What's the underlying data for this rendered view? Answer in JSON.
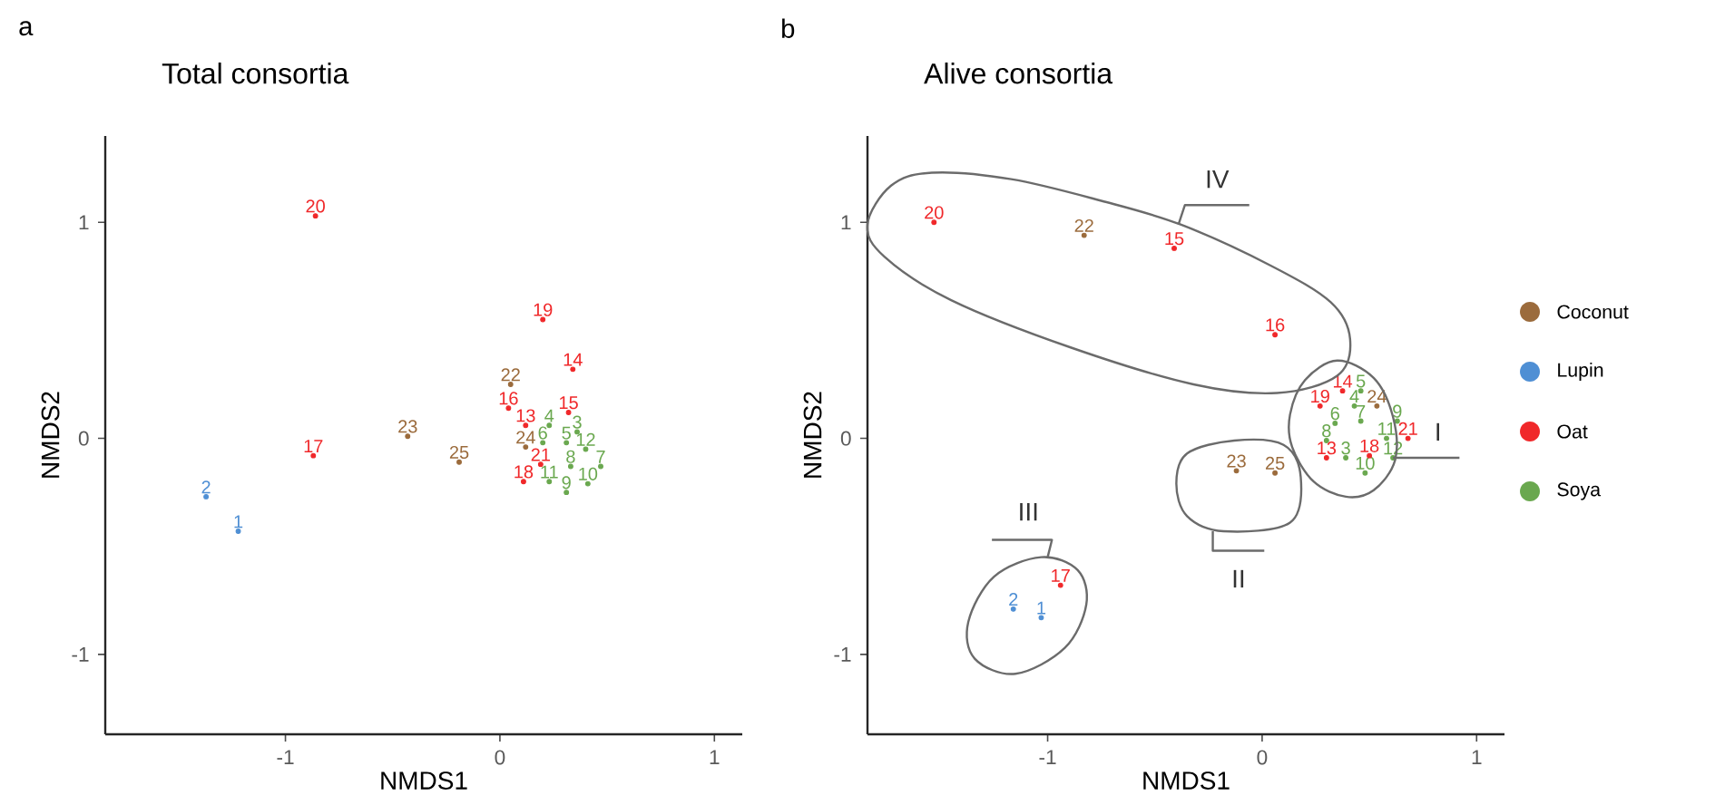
{
  "chart_data": [
    {
      "type": "scatter",
      "title": "Total consortia",
      "xlabel": "NMDS1",
      "ylabel": "NMDS2",
      "marker": "circle",
      "xlim": [
        -1.84,
        1.13
      ],
      "ylim": [
        -1.37,
        1.4
      ],
      "xticks": [
        -1,
        0,
        1
      ],
      "yticks": [
        -1,
        0,
        1
      ],
      "series": [
        {
          "color": "#9b6b3c",
          "x": [
            0.05,
            -0.43,
            -0.19,
            0.12
          ],
          "values": [
            0.25,
            0.01,
            -0.11,
            -0.04
          ]
        },
        {
          "color": "#4f8fd4",
          "x": [
            -1.37,
            -1.22
          ],
          "values": [
            -0.27,
            -0.43
          ]
        },
        {
          "color": "#f0282a",
          "x": [
            -0.86,
            0.2,
            0.34,
            -0.87,
            0.04,
            0.12,
            0.32,
            0.19,
            0.11
          ],
          "values": [
            1.03,
            0.55,
            0.32,
            -0.08,
            0.14,
            0.06,
            0.12,
            -0.12,
            -0.2
          ]
        },
        {
          "color": "#6aa84f",
          "x": [
            0.23,
            0.36,
            0.2,
            0.31,
            0.4,
            0.33,
            0.47,
            0.23,
            0.31,
            0.41
          ],
          "values": [
            0.06,
            0.03,
            -0.02,
            -0.02,
            -0.05,
            -0.13,
            -0.13,
            -0.2,
            -0.25,
            -0.21
          ]
        }
      ],
      "annotations": [
        "a",
        {
          "text": "22",
          "x": 0.05,
          "y": 0.25
        },
        {
          "text": "23",
          "x": -0.43,
          "y": 0.01
        },
        {
          "text": "25",
          "x": -0.19,
          "y": -0.11
        },
        {
          "text": "24",
          "x": 0.12,
          "y": -0.04
        },
        {
          "text": "2",
          "x": -1.37,
          "y": -0.27
        },
        {
          "text": "1",
          "x": -1.22,
          "y": -0.43
        },
        {
          "text": "20",
          "x": -0.86,
          "y": 1.03
        },
        {
          "text": "19",
          "x": 0.2,
          "y": 0.55
        },
        {
          "text": "14",
          "x": 0.34,
          "y": 0.32
        },
        {
          "text": "17",
          "x": -0.87,
          "y": -0.08
        },
        {
          "text": "16",
          "x": 0.04,
          "y": 0.14
        },
        {
          "text": "13",
          "x": 0.12,
          "y": 0.06
        },
        {
          "text": "15",
          "x": 0.32,
          "y": 0.12
        },
        {
          "text": "21",
          "x": 0.19,
          "y": -0.12
        },
        {
          "text": "18",
          "x": 0.11,
          "y": -0.2
        },
        {
          "text": "4",
          "x": 0.23,
          "y": 0.06
        },
        {
          "text": "3",
          "x": 0.36,
          "y": 0.03
        },
        {
          "text": "6",
          "x": 0.2,
          "y": -0.02
        },
        {
          "text": "5",
          "x": 0.31,
          "y": -0.02
        },
        {
          "text": "12",
          "x": 0.4,
          "y": -0.05
        },
        {
          "text": "8",
          "x": 0.33,
          "y": -0.13
        },
        {
          "text": "7",
          "x": 0.47,
          "y": -0.13
        },
        {
          "text": "11",
          "x": 0.23,
          "y": -0.2
        },
        {
          "text": "9",
          "x": 0.31,
          "y": -0.25
        },
        {
          "text": "10",
          "x": 0.41,
          "y": -0.21
        }
      ]
    },
    {
      "type": "scatter",
      "title": "Alive consortia",
      "xlabel": "NMDS1",
      "ylabel": "NMDS2",
      "marker": "circle",
      "legend": "right",
      "xlim": [
        -1.84,
        1.13
      ],
      "ylim": [
        -1.37,
        1.4
      ],
      "xticks": [
        -1,
        0,
        1
      ],
      "yticks": [
        -1,
        0,
        1
      ],
      "series": [
        {
          "name": "Coconut",
          "color": "#9b6b3c",
          "x": [
            -0.83,
            -0.12,
            0.06,
            0.535
          ],
          "values": [
            0.94,
            -0.15,
            -0.16,
            0.15
          ]
        },
        {
          "name": "Lupin",
          "color": "#4f8fd4",
          "x": [
            -1.16,
            -1.03
          ],
          "values": [
            -0.79,
            -0.83
          ]
        },
        {
          "name": "Oat",
          "color": "#f0282a",
          "x": [
            -1.53,
            -0.41,
            0.06,
            -0.94,
            0.375,
            0.27,
            0.68,
            0.3,
            0.5
          ],
          "values": [
            1.0,
            0.88,
            0.48,
            -0.68,
            0.22,
            0.15,
            0.0,
            -0.09,
            -0.08
          ]
        },
        {
          "name": "Soya",
          "color": "#6aa84f",
          "x": [
            0.46,
            0.43,
            0.34,
            0.46,
            0.63,
            0.3,
            0.58,
            0.39,
            0.61,
            0.48
          ],
          "values": [
            0.22,
            0.15,
            0.07,
            0.08,
            0.08,
            -0.01,
            0.0,
            -0.09,
            -0.09,
            -0.16
          ]
        }
      ],
      "annotations": [
        "b",
        {
          "text": "I",
          "x": 0.61,
          "y": -0.09
        },
        "II",
        "III",
        "IV",
        {
          "text": "22",
          "x": -0.83,
          "y": 0.94
        },
        {
          "text": "23",
          "x": -0.12,
          "y": -0.15
        },
        {
          "text": "25",
          "x": 0.06,
          "y": -0.16
        },
        {
          "text": "24",
          "x": 0.535,
          "y": 0.15
        },
        {
          "text": "2",
          "x": -1.16,
          "y": -0.79
        },
        {
          "text": "1",
          "x": -1.03,
          "y": -0.83
        },
        {
          "text": "20",
          "x": -1.53,
          "y": 1.0
        },
        {
          "text": "15",
          "x": -0.41,
          "y": 0.88
        },
        {
          "text": "16",
          "x": 0.06,
          "y": 0.48
        },
        {
          "text": "17",
          "x": -0.94,
          "y": -0.68
        },
        {
          "text": "14",
          "x": 0.375,
          "y": 0.22
        },
        {
          "text": "19",
          "x": 0.27,
          "y": 0.15
        },
        {
          "text": "21",
          "x": 0.68,
          "y": 0.0
        },
        {
          "text": "13",
          "x": 0.3,
          "y": -0.09
        },
        {
          "text": "18",
          "x": 0.5,
          "y": -0.08
        },
        {
          "text": "5",
          "x": 0.46,
          "y": 0.22
        },
        {
          "text": "4",
          "x": 0.43,
          "y": 0.15
        },
        {
          "text": "6",
          "x": 0.34,
          "y": 0.07
        },
        {
          "text": "7",
          "x": 0.46,
          "y": 0.08
        },
        {
          "text": "9",
          "x": 0.63,
          "y": 0.08
        },
        {
          "text": "8",
          "x": 0.3,
          "y": -0.01
        },
        {
          "text": "11",
          "x": 0.58,
          "y": 0.0
        },
        {
          "text": "3",
          "x": 0.39,
          "y": -0.09
        },
        {
          "text": "12",
          "x": 0.61,
          "y": -0.09
        },
        {
          "text": "10",
          "x": 0.48,
          "y": -0.16
        }
      ]
    }
  ]
}
